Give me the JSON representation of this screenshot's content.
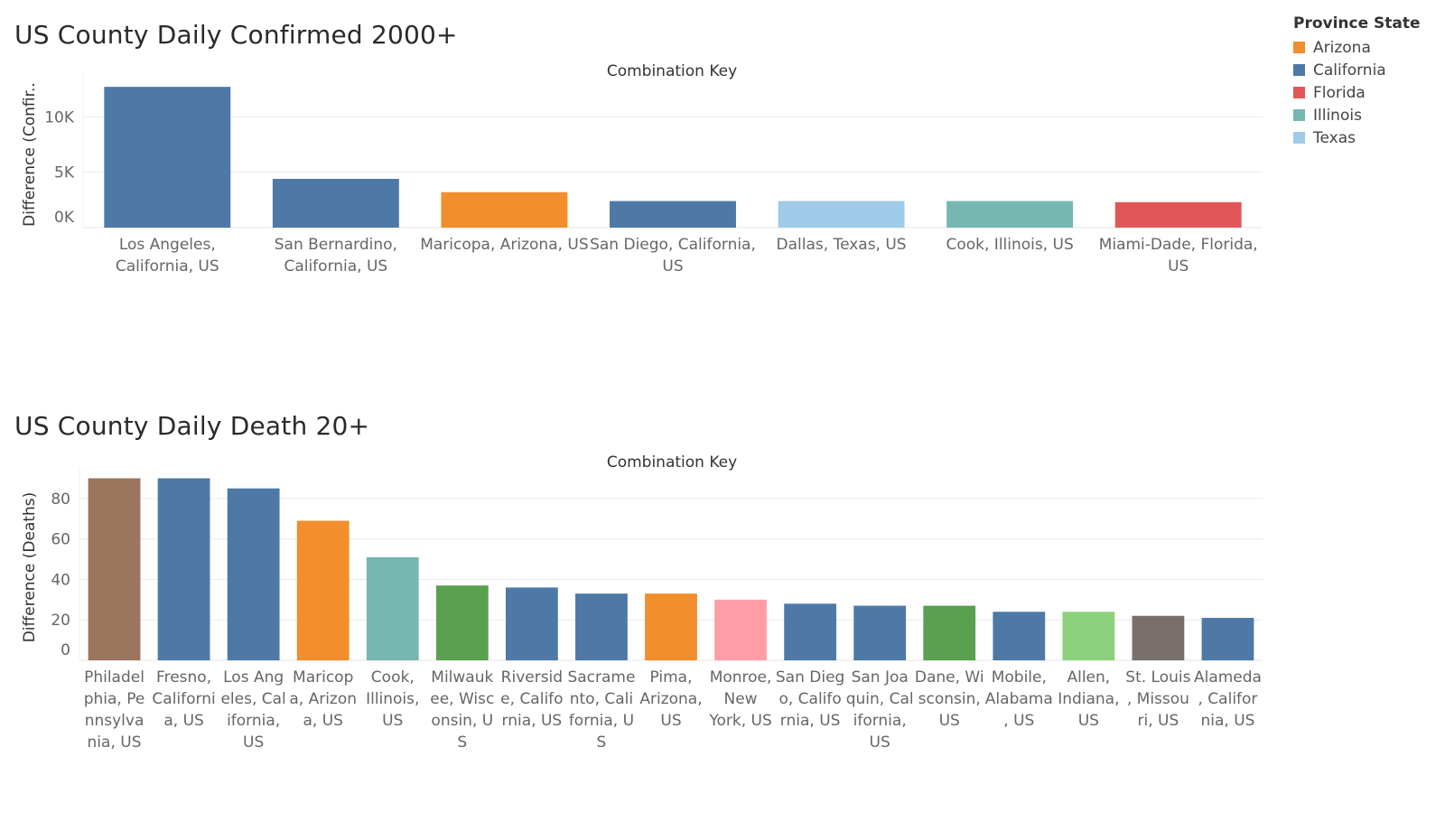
{
  "legend": {
    "title": "Province State",
    "items": [
      {
        "label": "Arizona",
        "color": "#f28e2b"
      },
      {
        "label": "California",
        "color": "#4e79a7"
      },
      {
        "label": "Florida",
        "color": "#e15759"
      },
      {
        "label": "Illinois",
        "color": "#76b7b2"
      },
      {
        "label": "Texas",
        "color": "#a0cbe8"
      }
    ]
  },
  "chart_data": [
    {
      "type": "bar",
      "title": "US County Daily Confirmed 2000+",
      "xlabel": "Combination Key",
      "ylabel": "Difference (Confir..",
      "ylim": [
        0,
        13200
      ],
      "yticks": [
        {
          "value": 0,
          "label": "0K"
        },
        {
          "value": 5000,
          "label": "5K"
        },
        {
          "value": 10000,
          "label": "10K"
        }
      ],
      "grid": true,
      "legend": "right",
      "categories": [
        [
          "Los Angeles,",
          "California, US"
        ],
        [
          "San Bernardino,",
          "California, US"
        ],
        [
          "Maricopa, Arizona, US"
        ],
        [
          "San Diego, California,",
          "US"
        ],
        [
          "Dallas, Texas, US"
        ],
        [
          "Cook, Illinois, US"
        ],
        [
          "Miami-Dade, Florida,",
          "US"
        ]
      ],
      "values": [
        12700,
        4400,
        3200,
        2400,
        2400,
        2400,
        2300
      ],
      "colors": [
        "#4e79a7",
        "#4e79a7",
        "#f28e2b",
        "#4e79a7",
        "#a0cbe8",
        "#76b7b2",
        "#e15759"
      ]
    },
    {
      "type": "bar",
      "title": "US County Daily Death 20+",
      "xlabel": "Combination Key",
      "ylabel": "Difference (Deaths)",
      "ylim": [
        0,
        92
      ],
      "yticks": [
        {
          "value": 0,
          "label": "0"
        },
        {
          "value": 20,
          "label": "20"
        },
        {
          "value": 40,
          "label": "40"
        },
        {
          "value": 60,
          "label": "60"
        },
        {
          "value": 80,
          "label": "80"
        }
      ],
      "grid": true,
      "categories": [
        [
          "Philadel",
          "phia, Pe",
          "nnsylva",
          "nia, US"
        ],
        [
          "Fresno,",
          "Californi",
          "a, US"
        ],
        [
          "Los Ang",
          "eles, Cal",
          "ifornia,",
          "US"
        ],
        [
          "Maricop",
          "a, Arizon",
          "a, US"
        ],
        [
          "Cook,",
          "Illinois,",
          "US"
        ],
        [
          "Milwauk",
          "ee, Wisc",
          "onsin, U",
          "S"
        ],
        [
          "Riversid",
          "e, Califo",
          "rnia, US"
        ],
        [
          "Sacrame",
          "nto, Cali",
          "fornia, U",
          "S"
        ],
        [
          "Pima,",
          "Arizona,",
          "US"
        ],
        [
          "Monroe,",
          "New",
          "York, US"
        ],
        [
          "San Dieg",
          "o, Califo",
          "rnia, US"
        ],
        [
          "San Joa",
          "quin, Cal",
          "ifornia,",
          "US"
        ],
        [
          "Dane, Wi",
          "sconsin,",
          "US"
        ],
        [
          "Mobile,",
          "Alabama",
          ", US"
        ],
        [
          "Allen,",
          "Indiana,",
          "US"
        ],
        [
          "St. Louis",
          ", Missou",
          "ri, US"
        ],
        [
          "Alameda",
          ", Califor",
          "nia, US"
        ]
      ],
      "values": [
        90,
        90,
        85,
        69,
        51,
        37,
        36,
        33,
        33,
        30,
        28,
        27,
        27,
        24,
        24,
        22,
        21
      ],
      "colors": [
        "#9c755f",
        "#4e79a7",
        "#4e79a7",
        "#f28e2b",
        "#76b7b2",
        "#59a14f",
        "#4e79a7",
        "#4e79a7",
        "#f28e2b",
        "#ff9da7",
        "#4e79a7",
        "#4e79a7",
        "#59a14f",
        "#4e79a7",
        "#8cd17d",
        "#79706e",
        "#4e79a7"
      ]
    }
  ]
}
